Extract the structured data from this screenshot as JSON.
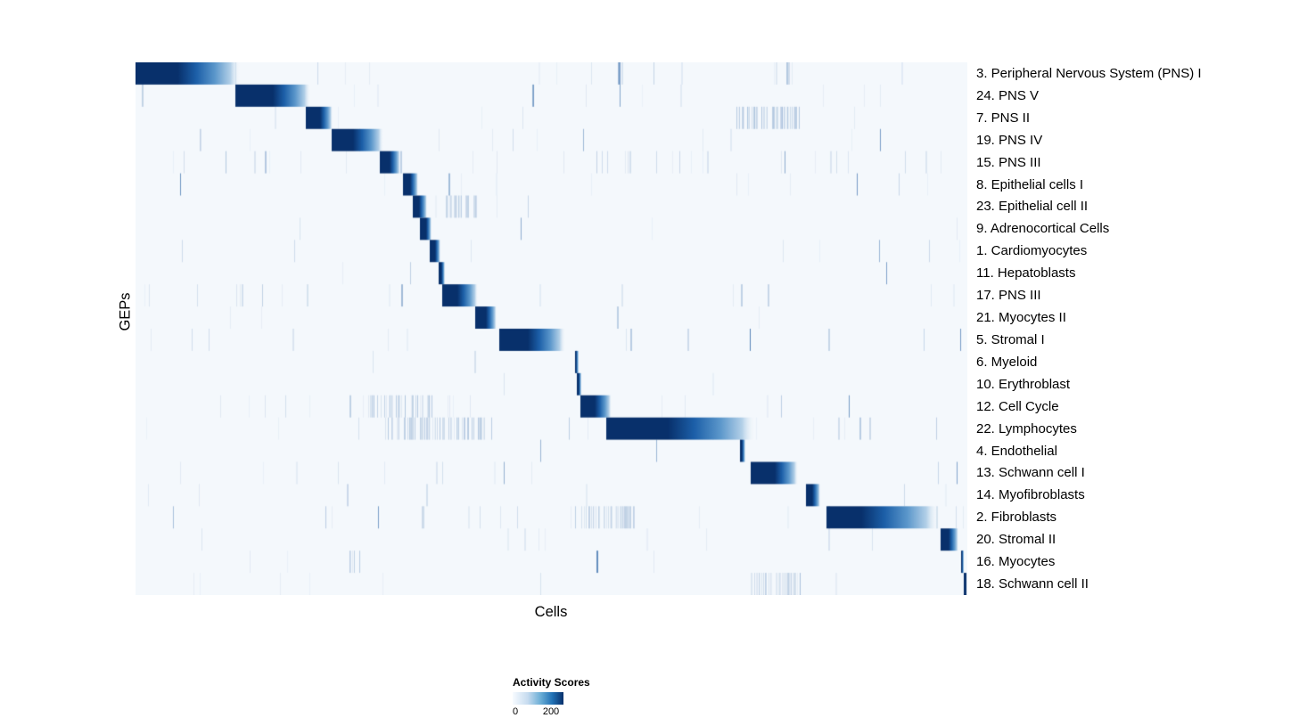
{
  "figure": {
    "xlabel": "Cells",
    "ylabel": "GEPs"
  },
  "legend": {
    "title": "Activity Scores",
    "min_label": "0",
    "max_label": "200"
  },
  "chart_data": {
    "type": "heatmap",
    "title": "",
    "xlabel": "Cells",
    "ylabel": "GEPs",
    "colormap": "Blues",
    "value_range": [
      0,
      200
    ],
    "legend_title": "Activity Scores",
    "background_color": "#f4f8fc",
    "peak_color": "#08306b",
    "noise_color_rgb": "30,90,160",
    "noise_seed": 42,
    "rows": [
      {
        "label": "3. Peripheral Nervous System (PNS) I",
        "block": [
          0.0,
          0.05,
          0.125
        ],
        "noise": 0.45,
        "extras": []
      },
      {
        "label": "24. PNS V",
        "block": [
          0.12,
          0.165,
          0.21
        ],
        "noise": 0.3,
        "extras": []
      },
      {
        "label": "7. PNS II",
        "block": [
          0.205,
          0.222,
          0.237
        ],
        "noise": 0.25,
        "extras": [
          [
            0.72,
            0.8,
            0.3
          ]
        ]
      },
      {
        "label": "19. PNS IV",
        "block": [
          0.236,
          0.262,
          0.298
        ],
        "noise": 0.4,
        "extras": []
      },
      {
        "label": "15. PNS III",
        "block": [
          0.294,
          0.306,
          0.318
        ],
        "noise": 0.45,
        "extras": []
      },
      {
        "label": "8. Epithelial cells I",
        "block": [
          0.322,
          0.33,
          0.34
        ],
        "noise": 0.15,
        "extras": []
      },
      {
        "label": "23. Epithelial cell II",
        "block": [
          0.333,
          0.341,
          0.351
        ],
        "noise": 0.18,
        "extras": [
          [
            0.37,
            0.41,
            0.2
          ]
        ]
      },
      {
        "label": "9. Adrenocortical Cells",
        "block": [
          0.342,
          0.349,
          0.356
        ],
        "noise": 0.12,
        "extras": []
      },
      {
        "label": "1. Cardiomyocytes",
        "block": [
          0.354,
          0.36,
          0.367
        ],
        "noise": 0.12,
        "extras": []
      },
      {
        "label": "11. Hepatoblasts",
        "block": [
          0.364,
          0.368,
          0.372
        ],
        "noise": 0.1,
        "extras": []
      },
      {
        "label": "17. PNS III",
        "block": [
          0.369,
          0.387,
          0.412
        ],
        "noise": 0.35,
        "extras": []
      },
      {
        "label": "21. Myocytes II",
        "block": [
          0.408,
          0.421,
          0.434
        ],
        "noise": 0.22,
        "extras": []
      },
      {
        "label": "5. Stromal I",
        "block": [
          0.437,
          0.472,
          0.517
        ],
        "noise": 0.28,
        "extras": []
      },
      {
        "label": "6. Myeloid",
        "block": [
          0.528,
          0.53,
          0.533
        ],
        "noise": 0.1,
        "extras": []
      },
      {
        "label": "10. Erythroblast",
        "block": [
          0.531,
          0.533,
          0.536
        ],
        "noise": 0.12,
        "extras": []
      },
      {
        "label": "12. Cell Cycle",
        "block": [
          0.535,
          0.552,
          0.572
        ],
        "noise": 0.4,
        "extras": [
          [
            0.28,
            0.36,
            0.25
          ]
        ]
      },
      {
        "label": "22. Lymphocytes",
        "block": [
          0.566,
          0.64,
          0.745
        ],
        "noise": 0.4,
        "extras": [
          [
            0.3,
            0.42,
            0.25
          ]
        ]
      },
      {
        "label": "4. Endothelial",
        "block": [
          0.727,
          0.729,
          0.733
        ],
        "noise": 0.1,
        "extras": []
      },
      {
        "label": "13. Schwann cell I",
        "block": [
          0.74,
          0.768,
          0.796
        ],
        "noise": 0.25,
        "extras": []
      },
      {
        "label": "14. Myofibroblasts",
        "block": [
          0.806,
          0.814,
          0.823
        ],
        "noise": 0.15,
        "extras": []
      },
      {
        "label": "2. Fibroblasts",
        "block": [
          0.831,
          0.872,
          0.965
        ],
        "noise": 0.35,
        "extras": [
          [
            0.52,
            0.6,
            0.2
          ]
        ]
      },
      {
        "label": "20. Stromal II",
        "block": [
          0.968,
          0.978,
          0.989
        ],
        "noise": 0.25,
        "extras": []
      },
      {
        "label": "16. Myocytes",
        "block": [
          0.992,
          0.994,
          0.996
        ],
        "noise": 0.18,
        "extras": [
          [
            0.255,
            0.27,
            0.25
          ]
        ]
      },
      {
        "label": "18. Schwann cell II",
        "block": [
          0.996,
          0.999,
          1.0
        ],
        "noise": 0.22,
        "extras": [
          [
            0.74,
            0.8,
            0.2
          ]
        ]
      }
    ]
  }
}
